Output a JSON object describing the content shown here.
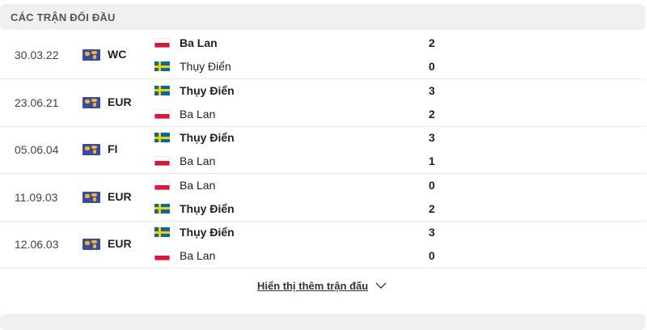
{
  "header": {
    "title": "CÁC TRẬN ĐỐI ĐẦU"
  },
  "matches": [
    {
      "date": "30.03.22",
      "competition": "WC",
      "teams": [
        {
          "name": "Ba Lan",
          "flag": "poland",
          "score": "2",
          "winner": true
        },
        {
          "name": "Thụy Điển",
          "flag": "sweden",
          "score": "0",
          "winner": false
        }
      ]
    },
    {
      "date": "23.06.21",
      "competition": "EUR",
      "teams": [
        {
          "name": "Thụy Điển",
          "flag": "sweden",
          "score": "3",
          "winner": true
        },
        {
          "name": "Ba Lan",
          "flag": "poland",
          "score": "2",
          "winner": false
        }
      ]
    },
    {
      "date": "05.06.04",
      "competition": "FI",
      "teams": [
        {
          "name": "Thụy Điển",
          "flag": "sweden",
          "score": "3",
          "winner": true
        },
        {
          "name": "Ba Lan",
          "flag": "poland",
          "score": "1",
          "winner": false
        }
      ]
    },
    {
      "date": "11.09.03",
      "competition": "EUR",
      "teams": [
        {
          "name": "Ba Lan",
          "flag": "poland",
          "score": "0",
          "winner": false
        },
        {
          "name": "Thụy Điển",
          "flag": "sweden",
          "score": "2",
          "winner": true
        }
      ]
    },
    {
      "date": "12.06.03",
      "competition": "EUR",
      "teams": [
        {
          "name": "Thụy Điển",
          "flag": "sweden",
          "score": "3",
          "winner": true
        },
        {
          "name": "Ba Lan",
          "flag": "poland",
          "score": "0",
          "winner": false
        }
      ]
    }
  ],
  "show_more": "Hiển thị thêm trận đấu"
}
